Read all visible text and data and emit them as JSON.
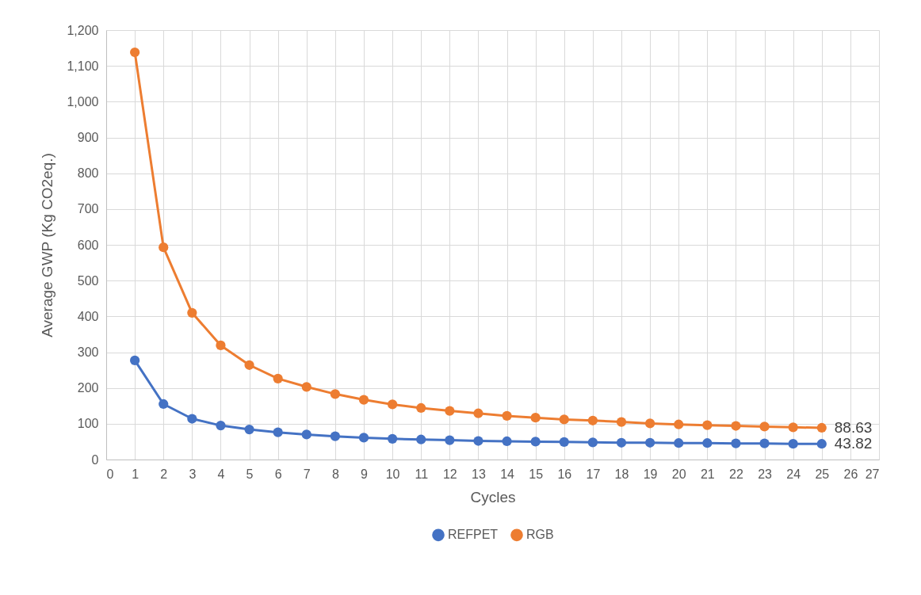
{
  "chart_data": {
    "type": "line",
    "xlabel": "Cycles",
    "ylabel": "Average GWP (Kg CO2eq.)",
    "x": [
      1,
      2,
      3,
      4,
      5,
      6,
      7,
      8,
      9,
      10,
      11,
      12,
      13,
      14,
      15,
      16,
      17,
      18,
      19,
      20,
      21,
      22,
      23,
      24,
      25
    ],
    "xlim": [
      0,
      27
    ],
    "xticks": [
      0,
      1,
      2,
      3,
      4,
      5,
      6,
      7,
      8,
      9,
      10,
      11,
      12,
      13,
      14,
      15,
      16,
      17,
      18,
      19,
      20,
      21,
      22,
      23,
      24,
      25,
      26,
      27
    ],
    "ylim": [
      0,
      1200
    ],
    "yticks": [
      0,
      {
        "value": 100,
        "label": "100"
      },
      {
        "value": 200,
        "label": "200"
      },
      {
        "value": 300,
        "label": "300"
      },
      {
        "value": 400,
        "label": "400"
      },
      {
        "value": 500,
        "label": "500"
      },
      {
        "value": 600,
        "label": "600"
      },
      {
        "value": 700,
        "label": "700"
      },
      {
        "value": 800,
        "label": "800"
      },
      {
        "value": 900,
        "label": "900"
      },
      {
        "value": 1000,
        "label": "1,000"
      },
      {
        "value": 1100,
        "label": "1,100"
      },
      {
        "value": 1200,
        "label": "1,200"
      }
    ],
    "series": [
      {
        "name": "REFPET",
        "color": "#4472c4",
        "values": [
          277,
          155,
          114,
          95,
          84,
          76,
          70,
          65,
          61,
          58,
          56,
          54,
          52,
          51,
          50,
          49,
          48,
          47,
          47,
          46,
          46,
          45,
          45,
          44,
          43.82
        ],
        "value_labels": [
          null,
          null,
          null,
          null,
          null,
          null,
          null,
          null,
          null,
          null,
          null,
          null,
          null,
          null,
          null,
          null,
          null,
          null,
          null,
          null,
          null,
          null,
          null,
          null,
          "43.82"
        ]
      },
      {
        "name": "RGB",
        "color": "#ed7d31",
        "values": [
          1138,
          593,
          410,
          319,
          264,
          226,
          203,
          183,
          167,
          154,
          144,
          136,
          129,
          122,
          117,
          112,
          109,
          105,
          101,
          98,
          96,
          94,
          92,
          90,
          88.63
        ],
        "value_labels": [
          null,
          null,
          null,
          null,
          null,
          null,
          null,
          null,
          null,
          null,
          null,
          null,
          null,
          null,
          null,
          null,
          null,
          null,
          null,
          null,
          null,
          null,
          null,
          null,
          "88.63"
        ]
      }
    ],
    "grid": true,
    "legend": "bottom",
    "marker": "circle",
    "line_style": "solid"
  }
}
